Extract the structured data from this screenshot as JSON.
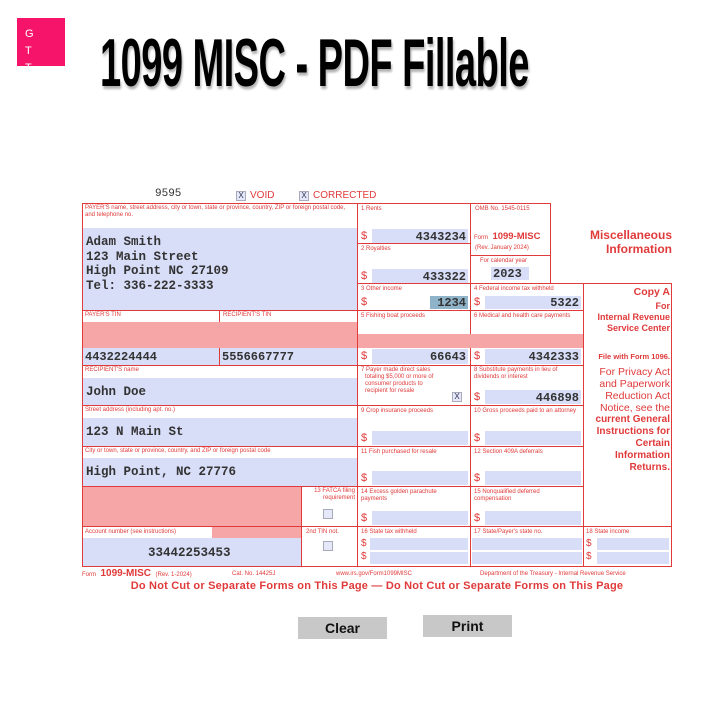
{
  "logo": {
    "letters": "G T T W"
  },
  "title": "1099 MISC - PDF Fillable",
  "form": {
    "code": "9595",
    "void_label": "VOID",
    "void_checked": "X",
    "corrected_label": "CORRECTED",
    "corrected_checked": "X",
    "payer_label": "PAYER'S name, street address, city or town, state or province, country, ZIP or foreign postal code, and telephone no.",
    "payer_lines": [
      "Adam Smith",
      "123 Main Street",
      "High Point NC 27109",
      "Tel: 336-222-3333"
    ],
    "payer_tin_label": "PAYER'S TIN",
    "payer_tin": "4432224444",
    "recipient_tin_label": "RECIPIENT'S TIN",
    "recipient_tin": "5556667777",
    "recipient_name_label": "RECIPIENT'S name",
    "recipient_name": "John Doe",
    "street_label": "Street address (including apt. no.)",
    "street": "123 N Main St",
    "city_label": "City or town, state or province, country, and ZIP or foreign postal code",
    "city": "High Point, NC 27776",
    "fatca_label": "13 FATCA filing requirement",
    "account_label": "Account number (see instructions)",
    "account": "33442253453",
    "second_tin_label": "2nd TIN not.",
    "omb": "OMB No. 1545-0115",
    "form_prefix": "Form",
    "form_name": "1099-MISC",
    "rev": "(Rev. January 2024)",
    "cal_year_label": "For calendar year",
    "cal_year": "2023",
    "heading": "Miscellaneous Information",
    "boxes": {
      "b1": {
        "label": "1 Rents",
        "value": "4343234"
      },
      "b2": {
        "label": "2 Royalties",
        "value": "433322"
      },
      "b3": {
        "label": "3 Other income",
        "value": "1234"
      },
      "b4": {
        "label": "4 Federal income tax withheld",
        "value": "5322"
      },
      "b5": {
        "label": "5 Fishing boat proceeds",
        "value": "66643"
      },
      "b6": {
        "label": "6 Medical and health care payments",
        "value": "4342333"
      },
      "b7": {
        "label": "7 Payer made direct sales totaling $5,000 or more of consumer products to recipient for resale",
        "value": "X"
      },
      "b8": {
        "label": "8 Substitute payments in lieu of dividends or interest",
        "value": "446898"
      },
      "b9": {
        "label": "9 Crop insurance proceeds",
        "value": ""
      },
      "b10": {
        "label": "10 Gross proceeds paid to an attorney",
        "value": ""
      },
      "b11": {
        "label": "11 Fish purchased for resale",
        "value": ""
      },
      "b12": {
        "label": "12 Section 409A deferrals",
        "value": ""
      },
      "b14": {
        "label": "14 Excess golden parachute payments",
        "value": ""
      },
      "b15": {
        "label": "15 Nonqualified deferred compensation",
        "value": ""
      },
      "b16": {
        "label": "16 State tax withheld",
        "value": ""
      },
      "b17": {
        "label": "17 State/Payer's state no.",
        "value": ""
      },
      "b18": {
        "label": "18 State income",
        "value": ""
      }
    },
    "dollar": "$",
    "copy_a": "Copy A",
    "copy_for": "For",
    "irs_center": "Internal Revenue Service Center",
    "file_with": "File with Form 1096.",
    "privacy_1": "For Privacy Act and Paperwork Reduction Act Notice, see the",
    "privacy_2": "current General Instructions for Certain Information Returns.",
    "footer_form": "Form",
    "footer_name": "1099-MISC",
    "footer_rev": "(Rev. 1-2024)",
    "footer_cat": "Cat. No. 14425J",
    "footer_url": "www.irs.gov/Form1099MISC",
    "footer_dept": "Department of the Treasury - Internal Revenue Service",
    "do_not_cut": "Do Not Cut or Separate Forms on This Page — Do Not Cut or Separate Forms on This Page"
  },
  "buttons": {
    "clear": "Clear",
    "print": "Print"
  },
  "colors": {
    "form_red": "#e03a3a",
    "field_blue": "#d8ddf8",
    "shade_pink": "#f6a6a6",
    "logo_pink": "#f5146a"
  }
}
